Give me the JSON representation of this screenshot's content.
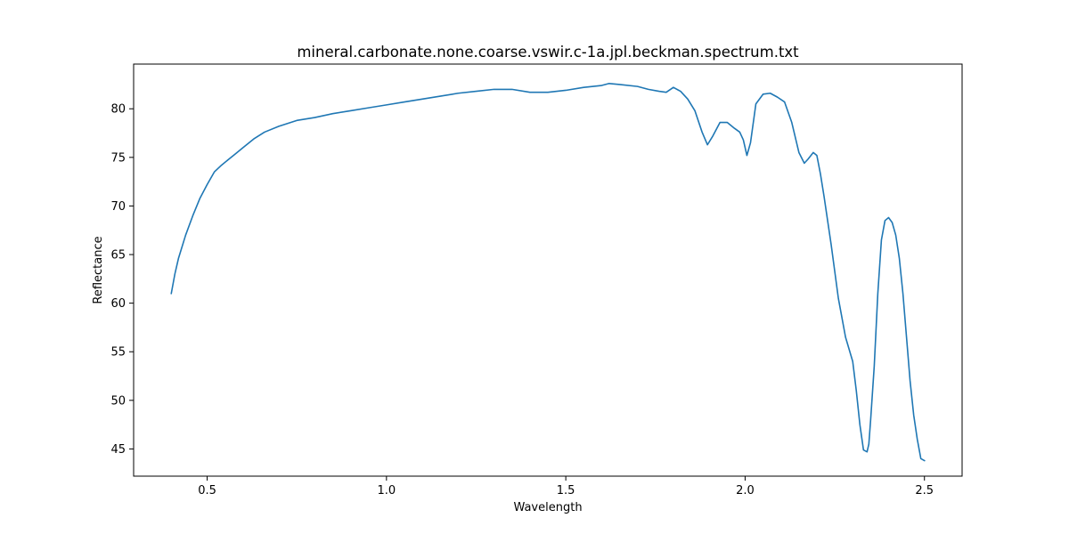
{
  "chart_data": {
    "type": "line",
    "title": "mineral.carbonate.none.coarse.vswir.c-1a.jpl.beckman.spectrum.txt",
    "xlabel": "Wavelength",
    "ylabel": "Reflectance",
    "xlim": [
      0.295,
      2.605
    ],
    "ylim": [
      42.2,
      84.6
    ],
    "xticks": [
      0.5,
      1.0,
      1.5,
      2.0,
      2.5
    ],
    "xtick_labels": [
      "0.5",
      "1.0",
      "1.5",
      "2.0",
      "2.5"
    ],
    "yticks": [
      45,
      50,
      55,
      60,
      65,
      70,
      75,
      80
    ],
    "ytick_labels": [
      "45",
      "50",
      "55",
      "60",
      "65",
      "70",
      "75",
      "80"
    ],
    "grid": false,
    "line_color": "#1f77b4",
    "series": [
      {
        "x": [
          0.4,
          0.41,
          0.42,
          0.44,
          0.46,
          0.48,
          0.5,
          0.52,
          0.54,
          0.56,
          0.58,
          0.6,
          0.63,
          0.66,
          0.7,
          0.75,
          0.8,
          0.85,
          0.9,
          0.95,
          1.0,
          1.05,
          1.1,
          1.15,
          1.2,
          1.25,
          1.3,
          1.35,
          1.4,
          1.45,
          1.5,
          1.55,
          1.6,
          1.62,
          1.65,
          1.7,
          1.73,
          1.76,
          1.78,
          1.8,
          1.82,
          1.84,
          1.86,
          1.88,
          1.895,
          1.91,
          1.93,
          1.95,
          1.97,
          1.985,
          1.995,
          2.005,
          2.015,
          2.03,
          2.05,
          2.07,
          2.09,
          2.11,
          2.13,
          2.15,
          2.165,
          2.175,
          2.19,
          2.2,
          2.21,
          2.22,
          2.24,
          2.26,
          2.28,
          2.3,
          2.31,
          2.32,
          2.33,
          2.34,
          2.345,
          2.35,
          2.36,
          2.37,
          2.38,
          2.39,
          2.4,
          2.41,
          2.42,
          2.43,
          2.44,
          2.45,
          2.46,
          2.47,
          2.48,
          2.49,
          2.5
        ],
        "y": [
          61.0,
          63.0,
          64.6,
          67.0,
          69.0,
          70.8,
          72.2,
          73.5,
          74.2,
          74.8,
          75.4,
          76.0,
          76.9,
          77.6,
          78.2,
          78.8,
          79.1,
          79.5,
          79.8,
          80.1,
          80.4,
          80.7,
          81.0,
          81.3,
          81.6,
          81.8,
          82.0,
          82.0,
          81.7,
          81.7,
          81.9,
          82.2,
          82.4,
          82.6,
          82.5,
          82.3,
          82.0,
          81.8,
          81.7,
          82.2,
          81.8,
          81.0,
          79.8,
          77.6,
          76.3,
          77.2,
          78.6,
          78.6,
          78.0,
          77.6,
          76.8,
          75.2,
          76.5,
          80.5,
          81.5,
          81.6,
          81.2,
          80.7,
          78.6,
          75.5,
          74.4,
          74.8,
          75.5,
          75.2,
          73.3,
          71.0,
          66.0,
          60.5,
          56.5,
          54.0,
          51.0,
          47.5,
          44.9,
          44.7,
          45.5,
          48.0,
          53.5,
          61.0,
          66.5,
          68.5,
          68.8,
          68.3,
          67.0,
          64.6,
          61.0,
          56.5,
          52.0,
          48.5,
          46.0,
          44.0,
          43.8
        ]
      }
    ]
  }
}
